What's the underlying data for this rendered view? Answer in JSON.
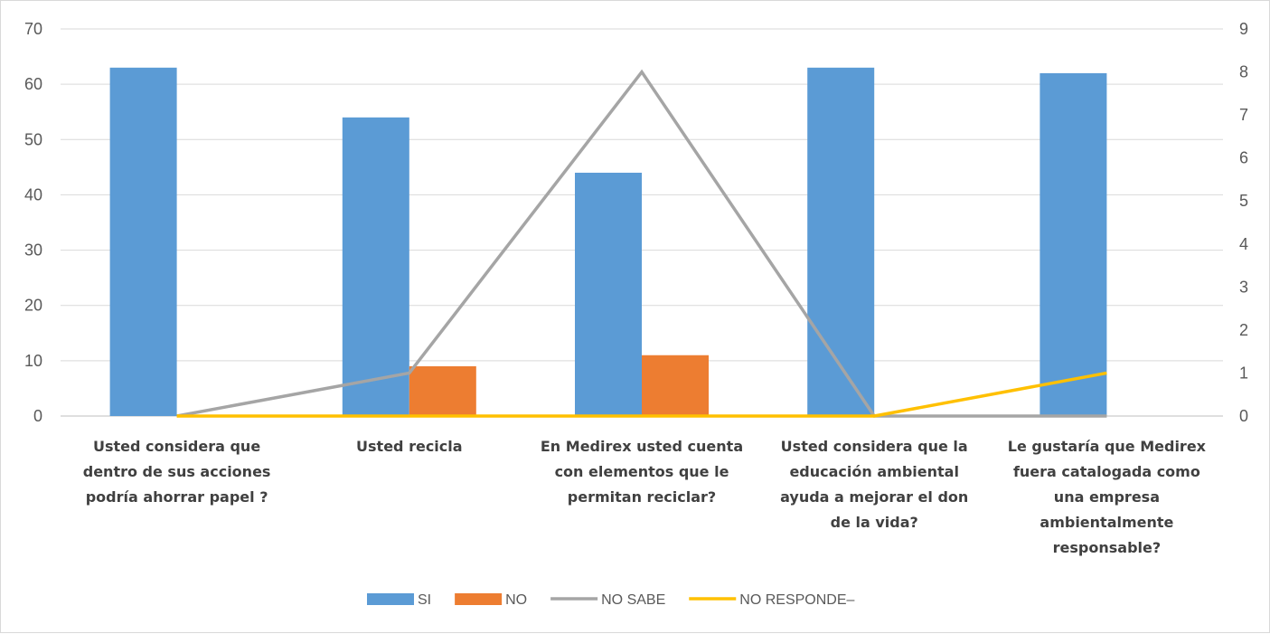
{
  "chart_data": {
    "type": "bar",
    "categories": [
      [
        "Usted considera que",
        "dentro de sus acciones",
        "podría ahorrar papel ?"
      ],
      [
        "Usted recicla"
      ],
      [
        "En Medirex usted cuenta",
        "con elementos que le",
        "permitan reciclar?"
      ],
      [
        "Usted considera que la",
        "educación ambiental",
        "ayuda a mejorar el don",
        "de la vida?"
      ],
      [
        "Le gustaría que Medirex",
        "fuera catalogada como",
        "una empresa",
        "ambientalmente",
        "responsable?"
      ]
    ],
    "series": [
      {
        "name": "SI",
        "type": "bar",
        "axis": "left",
        "color": "#5b9bd5",
        "values": [
          63,
          54,
          44,
          63,
          62
        ]
      },
      {
        "name": "NO",
        "type": "bar",
        "axis": "left",
        "color": "#ed7d31",
        "values": [
          0,
          9,
          11,
          0,
          0
        ]
      },
      {
        "name": "NO SABE",
        "type": "line",
        "axis": "right",
        "color": "#a5a5a5",
        "values": [
          0,
          1,
          8,
          0,
          0
        ]
      },
      {
        "name": "NO RESPONDE–",
        "type": "line",
        "axis": "right",
        "color": "#ffc000",
        "values": [
          0,
          0,
          0,
          0,
          1
        ]
      }
    ],
    "y_left": {
      "min": 0,
      "max": 70,
      "ticks": [
        0,
        10,
        20,
        30,
        40,
        50,
        60,
        70
      ]
    },
    "y_right": {
      "min": 0,
      "max": 9,
      "ticks": [
        0,
        1,
        2,
        3,
        4,
        5,
        6,
        7,
        8,
        9
      ]
    },
    "grid": true,
    "legend_position": "bottom"
  }
}
